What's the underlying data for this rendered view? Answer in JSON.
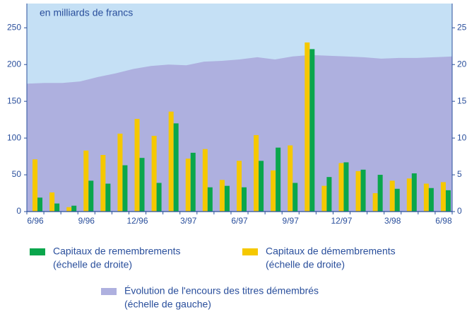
{
  "chart_data": {
    "type": "bar-area",
    "annotation": "en milliards de francs",
    "categories": [
      "6/96",
      null,
      null,
      "9/96",
      null,
      null,
      "12/96",
      null,
      null,
      "3/97",
      null,
      null,
      "6/97",
      null,
      null,
      "9/97",
      null,
      null,
      "12/97",
      null,
      null,
      "3/98",
      null,
      null,
      "6/98"
    ],
    "series": [
      {
        "name": "Capitaux de remembrements",
        "note": "(échelle de droite)",
        "color": "#0aa64c",
        "axis": "y2",
        "kind": "bar",
        "values": [
          1.9,
          1.1,
          0.8,
          4.2,
          3.8,
          6.3,
          7.3,
          3.9,
          12.0,
          8.0,
          3.3,
          3.5,
          3.3,
          6.9,
          8.7,
          3.9,
          22.1,
          4.7,
          6.7,
          5.7,
          5.0,
          3.1,
          5.2,
          3.2,
          2.9
        ]
      },
      {
        "name": "Capitaux de démembrements",
        "note": "(échelle de droite)",
        "color": "#f5c800",
        "axis": "y2",
        "kind": "bar",
        "values": [
          7.1,
          2.6,
          0.6,
          8.3,
          7.7,
          10.6,
          12.6,
          10.3,
          13.6,
          7.2,
          8.5,
          4.3,
          6.9,
          10.4,
          5.6,
          9.0,
          23.0,
          3.5,
          6.6,
          5.5,
          2.5,
          4.2,
          4.5,
          3.8,
          4.0
        ]
      },
      {
        "name": "Évolution de l'encours des titres démembrés",
        "note": "(échelle de gauche)",
        "color": "#aeb0df",
        "axis": "y",
        "kind": "area",
        "values": [
          174,
          175,
          175,
          177,
          183,
          188,
          194,
          198,
          200,
          199,
          204,
          205,
          207,
          210,
          207,
          211,
          213,
          212,
          211,
          210,
          208,
          209,
          209,
          210,
          211
        ]
      }
    ],
    "background": "#c5e0f5",
    "ylim": [
      0,
      283
    ],
    "yticks": [
      0,
      50,
      100,
      150,
      200,
      250
    ],
    "y2lim": [
      0,
      28.3
    ],
    "y2ticks": [
      0,
      5,
      10,
      15,
      20,
      25
    ]
  }
}
